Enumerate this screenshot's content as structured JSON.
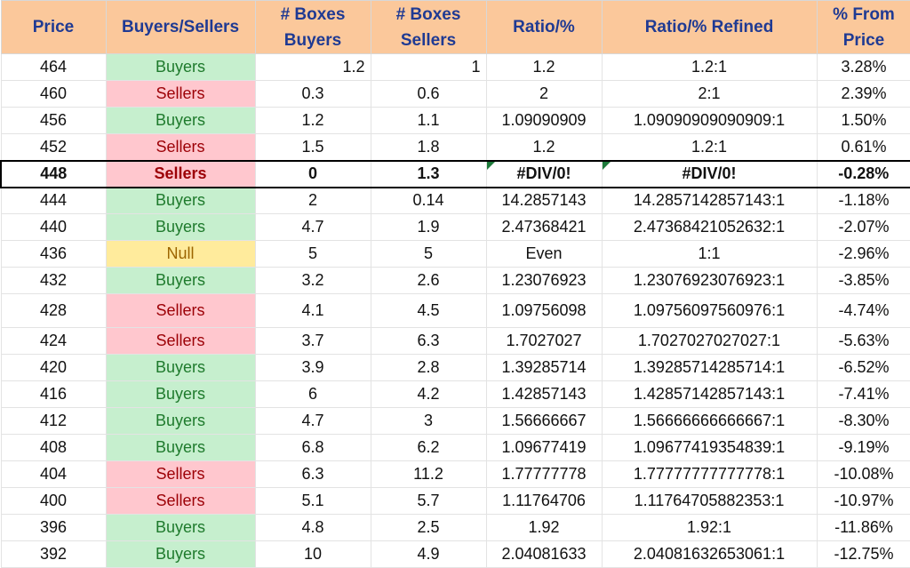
{
  "headers": {
    "price": "Price",
    "side": "Buyers/Sellers",
    "boxes_buyers": "# Boxes Buyers",
    "boxes_sellers": "# Boxes Sellers",
    "ratio": "Ratio/%",
    "ratio_refined": "Ratio/% Refined",
    "pct_from_price": "% From Price"
  },
  "rows": [
    {
      "price": "464",
      "side": "Buyers",
      "kind": "buyers",
      "buyers": "1.2",
      "sellers": "1",
      "ratio": "1.2",
      "refined": "1.2:1",
      "pct": "3.28%",
      "align": "right"
    },
    {
      "price": "460",
      "side": "Sellers",
      "kind": "sellers",
      "buyers": "0.3",
      "sellers": "0.6",
      "ratio": "2",
      "refined": "2:1",
      "pct": "2.39%"
    },
    {
      "price": "456",
      "side": "Buyers",
      "kind": "buyers",
      "buyers": "1.2",
      "sellers": "1.1",
      "ratio": "1.09090909",
      "refined": "1.09090909090909:1",
      "pct": "1.50%"
    },
    {
      "price": "452",
      "side": "Sellers",
      "kind": "sellers",
      "buyers": "1.5",
      "sellers": "1.8",
      "ratio": "1.2",
      "refined": "1.2:1",
      "pct": "0.61%"
    },
    {
      "price": "448",
      "side": "Sellers",
      "kind": "sellers",
      "buyers": "0",
      "sellers": "1.3",
      "ratio": "#DIV/0!",
      "refined": "#DIV/0!",
      "pct": "-0.28%",
      "current": true
    },
    {
      "price": "444",
      "side": "Buyers",
      "kind": "buyers",
      "buyers": "2",
      "sellers": "0.14",
      "ratio": "14.2857143",
      "refined": "14.2857142857143:1",
      "pct": "-1.18%"
    },
    {
      "price": "440",
      "side": "Buyers",
      "kind": "buyers",
      "buyers": "4.7",
      "sellers": "1.9",
      "ratio": "2.47368421",
      "refined": "2.47368421052632:1",
      "pct": "-2.07%"
    },
    {
      "price": "436",
      "side": "Null",
      "kind": "null",
      "buyers": "5",
      "sellers": "5",
      "ratio": "Even",
      "refined": "1:1",
      "pct": "-2.96%"
    },
    {
      "price": "432",
      "side": "Buyers",
      "kind": "buyers",
      "buyers": "3.2",
      "sellers": "2.6",
      "ratio": "1.23076923",
      "refined": "1.23076923076923:1",
      "pct": "-3.85%"
    },
    {
      "price": "428",
      "side": "Sellers",
      "kind": "sellers",
      "buyers": "4.1",
      "sellers": "4.5",
      "ratio": "1.09756098",
      "refined": "1.09756097560976:1",
      "pct": "-4.74%",
      "tall": true
    },
    {
      "price": "424",
      "side": "Sellers",
      "kind": "sellers",
      "buyers": "3.7",
      "sellers": "6.3",
      "ratio": "1.7027027",
      "refined": "1.7027027027027:1",
      "pct": "-5.63%"
    },
    {
      "price": "420",
      "side": "Buyers",
      "kind": "buyers",
      "buyers": "3.9",
      "sellers": "2.8",
      "ratio": "1.39285714",
      "refined": "1.39285714285714:1",
      "pct": "-6.52%"
    },
    {
      "price": "416",
      "side": "Buyers",
      "kind": "buyers",
      "buyers": "6",
      "sellers": "4.2",
      "ratio": "1.42857143",
      "refined": "1.42857142857143:1",
      "pct": "-7.41%"
    },
    {
      "price": "412",
      "side": "Buyers",
      "kind": "buyers",
      "buyers": "4.7",
      "sellers": "3",
      "ratio": "1.56666667",
      "refined": "1.56666666666667:1",
      "pct": "-8.30%"
    },
    {
      "price": "408",
      "side": "Buyers",
      "kind": "buyers",
      "buyers": "6.8",
      "sellers": "6.2",
      "ratio": "1.09677419",
      "refined": "1.09677419354839:1",
      "pct": "-9.19%"
    },
    {
      "price": "404",
      "side": "Sellers",
      "kind": "sellers",
      "buyers": "6.3",
      "sellers": "11.2",
      "ratio": "1.77777778",
      "refined": "1.77777777777778:1",
      "pct": "-10.08%"
    },
    {
      "price": "400",
      "side": "Sellers",
      "kind": "sellers",
      "buyers": "5.1",
      "sellers": "5.7",
      "ratio": "1.11764706",
      "refined": "1.11764705882353:1",
      "pct": "-10.97%"
    },
    {
      "price": "396",
      "side": "Buyers",
      "kind": "buyers",
      "buyers": "4.8",
      "sellers": "2.5",
      "ratio": "1.92",
      "refined": "1.92:1",
      "pct": "-11.86%"
    },
    {
      "price": "392",
      "side": "Buyers",
      "kind": "buyers",
      "buyers": "10",
      "sellers": "4.9",
      "ratio": "2.04081633",
      "refined": "2.04081632653061:1",
      "pct": "-12.75%"
    }
  ]
}
